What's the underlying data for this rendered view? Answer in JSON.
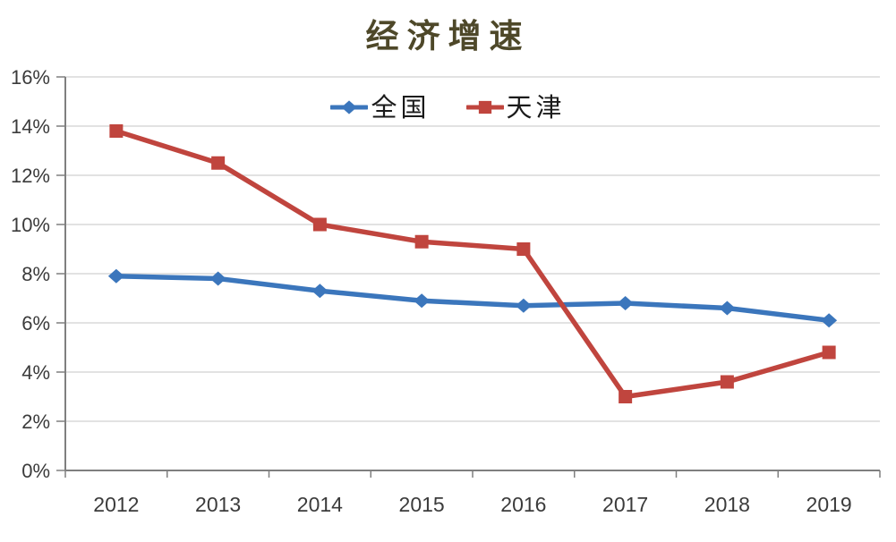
{
  "title": "经济增速",
  "colors": {
    "background": "#ffffff",
    "title": "#4e4829",
    "axis_text": "#3b3b3b",
    "grid": "#d9d9d9",
    "axis_line": "#7f7f7f"
  },
  "chart_data": {
    "type": "line",
    "title": "经济增速",
    "categories": [
      "2012",
      "2013",
      "2014",
      "2015",
      "2016",
      "2017",
      "2018",
      "2019"
    ],
    "series": [
      {
        "name": "全国",
        "color": "#3b76bc",
        "marker": "diamond",
        "values": [
          7.9,
          7.8,
          7.3,
          6.9,
          6.7,
          6.8,
          6.6,
          6.1
        ]
      },
      {
        "name": "天津",
        "color": "#c0453e",
        "marker": "square",
        "values": [
          13.8,
          12.5,
          10.0,
          9.3,
          9.0,
          3.0,
          3.6,
          4.8
        ]
      }
    ],
    "xlabel": "",
    "ylabel": "",
    "ylim": [
      0,
      16
    ],
    "ytick_step": 2,
    "ytick_labels": [
      "0%",
      "2%",
      "4%",
      "6%",
      "8%",
      "10%",
      "12%",
      "14%",
      "16%"
    ],
    "unit": "percent",
    "grid": true,
    "legend_position": "top-center"
  }
}
